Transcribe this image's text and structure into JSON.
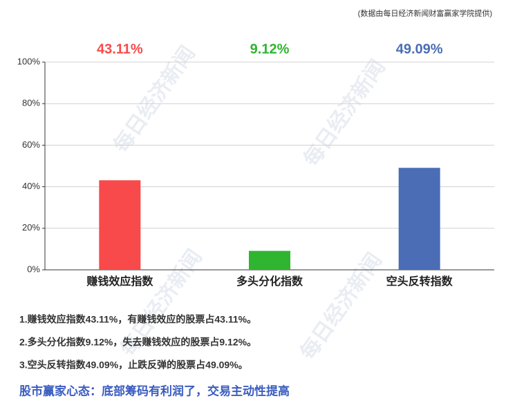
{
  "chart_data": {
    "type": "bar",
    "source": "(数据由每日经济新闻财富赢家学院提供)",
    "categories": [
      "赚钱效应指数",
      "多头分化指数",
      "空头反转指数"
    ],
    "values": [
      43.11,
      9.12,
      49.09
    ],
    "value_labels": [
      "43.11%",
      "9.12%",
      "49.09%"
    ],
    "colors": [
      "#f84a4a",
      "#2fb52f",
      "#4a6db5"
    ],
    "ylim": [
      0,
      100
    ],
    "yticks": [
      {
        "value": 0,
        "label": "0%"
      },
      {
        "value": 20,
        "label": "20%"
      },
      {
        "value": 40,
        "label": "40%"
      },
      {
        "value": 60,
        "label": "60%"
      },
      {
        "value": 80,
        "label": "80%"
      },
      {
        "value": 100,
        "label": "100%"
      }
    ],
    "grid": true,
    "watermark": "每日经济新闻",
    "notes": [
      "1.赚钱效应指数43.11%，有赚钱效应的股票占43.11%。",
      "2.多头分化指数9.12%，失去赚钱效应的股票占9.12%。",
      "3.空头反转指数49.09%，止跌反弹的股票占49.09%。"
    ],
    "headline": "股市赢家心态：底部筹码有利润了，交易主动性提高"
  }
}
